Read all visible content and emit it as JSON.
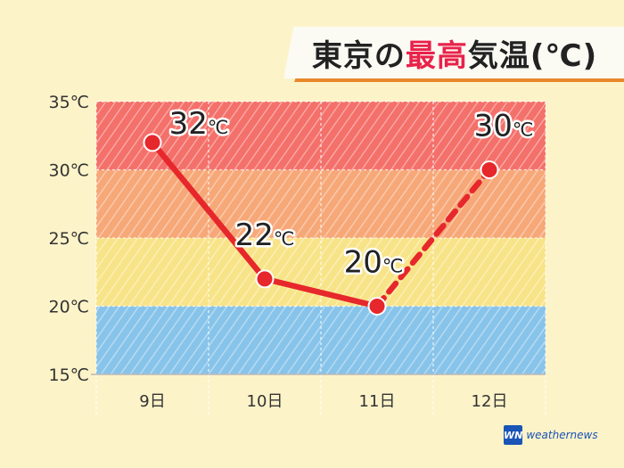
{
  "title": {
    "prefix": "東京の",
    "highlight": "最高",
    "suffix": "気温(℃)"
  },
  "brand": {
    "mark": "WN",
    "name": "weathernews"
  },
  "colors": {
    "band_hot": "#f4706a",
    "band_warm": "#f7a878",
    "band_mild": "#f8e488",
    "band_cool": "#88c4ea",
    "line": "#e6272b",
    "title_accent": "#e8224a",
    "title_bar": "#e8882a"
  },
  "chart_data": {
    "type": "line",
    "title": "東京の最高気温(℃)",
    "categories": [
      "9日",
      "10日",
      "11日",
      "12日"
    ],
    "values": [
      32,
      22,
      20,
      30
    ],
    "data_labels": [
      "32℃",
      "22℃",
      "20℃",
      "30℃"
    ],
    "ylim": [
      15,
      35
    ],
    "yticks": [
      35,
      30,
      25,
      20,
      15
    ],
    "ytick_labels": [
      "35℃",
      "30℃",
      "25℃",
      "20℃",
      "15℃"
    ],
    "segments": [
      {
        "from": 0,
        "to": 1,
        "style": "solid"
      },
      {
        "from": 1,
        "to": 2,
        "style": "solid"
      },
      {
        "from": 2,
        "to": 3,
        "style": "dashed"
      }
    ],
    "bands": [
      {
        "from": 30,
        "to": 35,
        "color_key": "band_hot"
      },
      {
        "from": 25,
        "to": 30,
        "color_key": "band_warm"
      },
      {
        "from": 20,
        "to": 25,
        "color_key": "band_mild"
      },
      {
        "from": 15,
        "to": 20,
        "color_key": "band_cool"
      }
    ],
    "grid": true
  }
}
